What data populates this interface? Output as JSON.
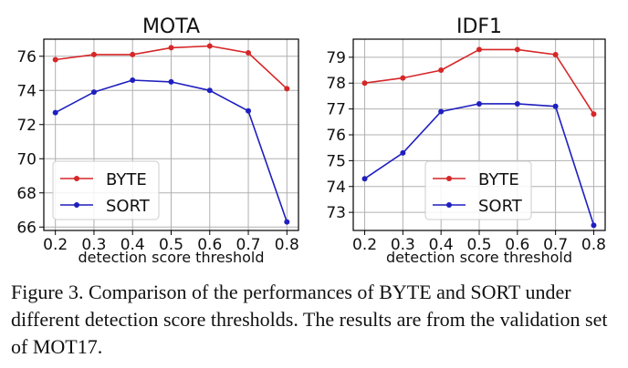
{
  "caption": "Figure 3. Comparison of the performances of BYTE and SORT under different detection score thresholds.  The results are from the validation set of MOT17.",
  "chart_data": [
    {
      "type": "line",
      "title": "MOTA",
      "xlabel": "detection score threshold",
      "ylabel": "",
      "x": [
        0.2,
        0.3,
        0.4,
        0.5,
        0.6,
        0.7,
        0.8
      ],
      "xticks": [
        "0.2",
        "0.3",
        "0.4",
        "0.5",
        "0.6",
        "0.7",
        "0.8"
      ],
      "xlim": [
        0.17,
        0.83
      ],
      "yticks": [
        66,
        68,
        70,
        72,
        74,
        76
      ],
      "ylim": [
        65.8,
        77.0
      ],
      "grid": true,
      "legend": "lower-left",
      "series": [
        {
          "name": "BYTE",
          "color": "#d62728",
          "values": [
            75.8,
            76.1,
            76.1,
            76.5,
            76.6,
            76.2,
            74.1
          ]
        },
        {
          "name": "SORT",
          "color": "#1f1fbf",
          "values": [
            72.7,
            73.9,
            74.6,
            74.5,
            74.0,
            72.8,
            66.3
          ]
        }
      ]
    },
    {
      "type": "line",
      "title": "IDF1",
      "xlabel": "detection score threshold",
      "ylabel": "",
      "x": [
        0.2,
        0.3,
        0.4,
        0.5,
        0.6,
        0.7,
        0.8
      ],
      "xticks": [
        "0.2",
        "0.3",
        "0.4",
        "0.5",
        "0.6",
        "0.7",
        "0.8"
      ],
      "xlim": [
        0.17,
        0.83
      ],
      "yticks": [
        73,
        74,
        75,
        76,
        77,
        78,
        79
      ],
      "ylim": [
        72.3,
        79.7
      ],
      "grid": true,
      "legend": "lower-center",
      "series": [
        {
          "name": "BYTE",
          "color": "#d62728",
          "values": [
            78.0,
            78.2,
            78.5,
            79.3,
            79.3,
            79.1,
            76.8
          ]
        },
        {
          "name": "SORT",
          "color": "#1f1fbf",
          "values": [
            74.3,
            75.3,
            76.9,
            77.2,
            77.2,
            77.1,
            72.5
          ]
        }
      ]
    }
  ]
}
